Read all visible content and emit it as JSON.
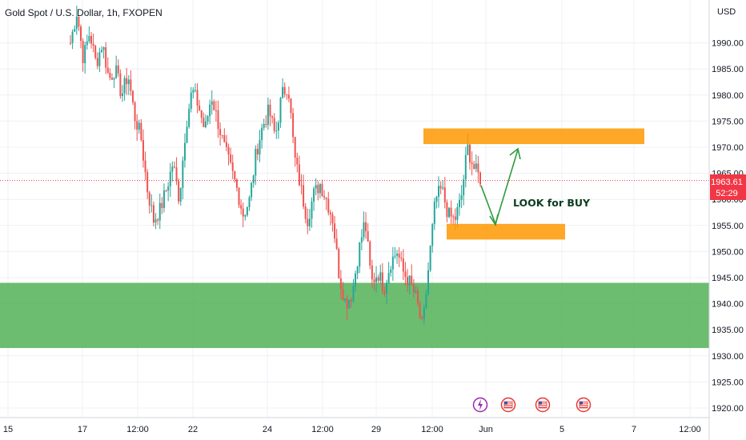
{
  "header": {
    "title": "Gold Spot / U.S. Dollar, 1h, FXOPEN",
    "currency": "USD"
  },
  "price_tag": {
    "price": "1963.61",
    "countdown": "52:29",
    "color": "#f23645"
  },
  "colors": {
    "up": "#26a69a",
    "down": "#ef5350",
    "support_zone": "#4caf50",
    "box": "#ff9800",
    "arrow": "#2e9b3a"
  },
  "events": [
    {
      "icon": "lightning-icon",
      "color": "#9c27b0"
    },
    {
      "icon": "us-flag-icon",
      "color": "#e53935"
    },
    {
      "icon": "us-flag-icon",
      "color": "#e53935"
    },
    {
      "icon": "us-flag-icon",
      "color": "#e53935"
    }
  ],
  "chart_data": {
    "type": "candlestick",
    "title": "Gold Spot / U.S. Dollar, 1h, FXOPEN",
    "y_axis_unit": "USD",
    "ylim": [
      1918,
      1999
    ],
    "y_ticks": [
      "1920.00",
      "1925.00",
      "1930.00",
      "1935.00",
      "1940.00",
      "1945.00",
      "1950.00",
      "1955.00",
      "1960.00",
      "1965.00",
      "1970.00",
      "1975.00",
      "1980.00",
      "1985.00",
      "1990.00"
    ],
    "x_ticks": [
      "15",
      "17",
      "12:00",
      "22",
      "24",
      "12:00",
      "29",
      "12:00",
      "Jun",
      "5",
      "7",
      "12:00"
    ],
    "last_price": 1963.61,
    "annotations": [
      {
        "text": "LOOK for BUY"
      }
    ],
    "zones": [
      {
        "name": "support",
        "low": 1931.5,
        "high": 1944.0,
        "color": "#4caf50"
      },
      {
        "name": "resistance box",
        "low": 1970.6,
        "high": 1973.6,
        "color": "#ff9800"
      },
      {
        "name": "buy box",
        "low": 1952.3,
        "high": 1955.3,
        "color": "#ff9800"
      }
    ],
    "path_waypoints": [
      [
        1990,
        1996,
        1987,
        1992,
        1986,
        1990,
        1983,
        1985,
        1980,
        1984,
        1976,
        1972,
        1962,
        1956,
        1958,
        1962,
        1967,
        1960,
        1974,
        1981,
        1978,
        1973,
        1980,
        1975,
        1970,
        1966,
        1962,
        1957,
        1960,
        1969,
        1974,
        1977,
        1972,
        1980,
        1982,
        1968,
        1962,
        1956,
        1961,
        1963,
        1960,
        1956,
        1945,
        1940,
        1942,
        1950,
        1956,
        1944,
        1946,
        1943,
        1948,
        1950,
        1946,
        1944,
        1941,
        1935,
        1948,
        1960,
        1962,
        1957,
        1956,
        1960,
        1970,
        1966,
        1964
      ]
    ],
    "candle_count": 198,
    "series": [
      {
        "name": "XAUUSD 1h",
        "kind": "ohlc"
      }
    ]
  }
}
